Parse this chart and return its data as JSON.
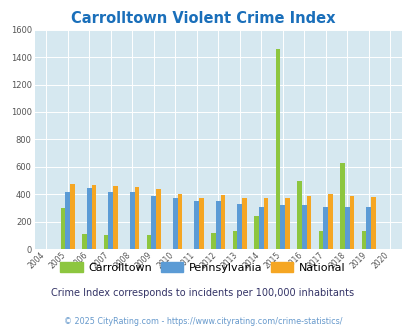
{
  "title": "Carrolltown Violent Crime Index",
  "years": [
    2004,
    2005,
    2006,
    2007,
    2008,
    2009,
    2010,
    2011,
    2012,
    2013,
    2014,
    2015,
    2016,
    2017,
    2018,
    2019,
    2020
  ],
  "carrolltown": [
    0,
    300,
    110,
    105,
    0,
    105,
    0,
    0,
    115,
    130,
    240,
    1460,
    500,
    130,
    625,
    130,
    0
  ],
  "pennsylvania": [
    0,
    420,
    445,
    415,
    415,
    385,
    375,
    350,
    350,
    330,
    305,
    325,
    320,
    310,
    310,
    310,
    0
  ],
  "national": [
    0,
    475,
    470,
    460,
    455,
    435,
    405,
    370,
    395,
    370,
    375,
    375,
    390,
    400,
    385,
    380,
    0
  ],
  "carrolltown_color": "#8dc63f",
  "pennsylvania_color": "#5b9bd5",
  "national_color": "#f5a623",
  "plot_bg": "#d6e8f0",
  "ylim": [
    0,
    1600
  ],
  "yticks": [
    0,
    200,
    400,
    600,
    800,
    1000,
    1200,
    1400,
    1600
  ],
  "grid_color": "#ffffff",
  "title_color": "#1a6fba",
  "subtitle": "Crime Index corresponds to incidents per 100,000 inhabitants",
  "footer": "© 2025 CityRating.com - https://www.cityrating.com/crime-statistics/",
  "legend_labels": [
    "Carrolltown",
    "Pennsylvania",
    "National"
  ],
  "subtitle_color": "#333366",
  "footer_color": "#6699cc"
}
